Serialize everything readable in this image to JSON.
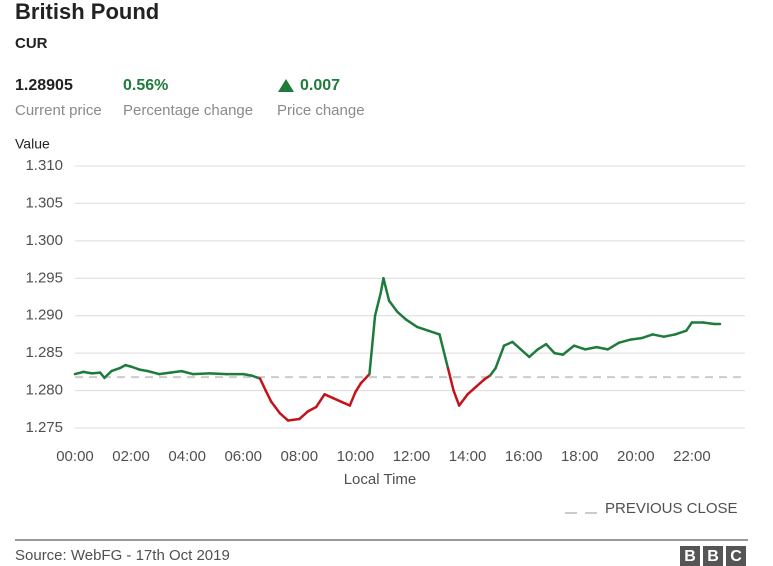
{
  "chart_data": {
    "type": "line",
    "title": "British Pound",
    "subtitle": "CUR",
    "stats": [
      {
        "value": "1.28905",
        "label": "Current price"
      },
      {
        "value": "0.56%",
        "label": "Percentage change"
      },
      {
        "value": "0.007",
        "label": "Price change"
      }
    ],
    "y_label": "Value",
    "x_label": "Local Time",
    "ylim": [
      1.275,
      1.31
    ],
    "yticks": [
      {
        "value": 1.275,
        "label": "1.275"
      },
      {
        "value": 1.28,
        "label": "1.280"
      },
      1.285,
      {
        "value": 1.29,
        "label": "1.290"
      },
      1.295,
      {
        "value": 1.3,
        "label": "1.300"
      },
      1.305,
      {
        "value": 1.31,
        "label": "1.310"
      }
    ],
    "xlim": [
      0,
      24
    ],
    "xticks": [
      {
        "value": 0,
        "label": "00:00"
      },
      {
        "value": 2,
        "label": "02:00"
      },
      {
        "value": 4,
        "label": "04:00"
      },
      {
        "value": 6,
        "label": "06:00"
      },
      {
        "value": 8,
        "label": "08:00"
      },
      {
        "value": 10,
        "label": "10:00"
      },
      {
        "value": 12,
        "label": "12:00"
      },
      {
        "value": 14,
        "label": "14:00"
      },
      {
        "value": 16,
        "label": "16:00"
      },
      {
        "value": 18,
        "label": "18:00"
      },
      {
        "value": 20,
        "label": "20:00"
      },
      {
        "value": 22,
        "label": "22:00"
      }
    ],
    "grid": true,
    "up_color": "#1e7b3c",
    "down_color": "#c3141c",
    "previous_close": {
      "value": 1.2818,
      "label": "PREVIOUS CLOSE",
      "color": "#cccccc"
    },
    "x": [
      0,
      0.3,
      0.6,
      0.9,
      1.05,
      1.3,
      1.6,
      1.8,
      2.0,
      2.3,
      2.6,
      3.0,
      3.4,
      3.8,
      4.2,
      4.8,
      5.4,
      6.0,
      6.3,
      6.6,
      6.8,
      7.0,
      7.3,
      7.6,
      8.0,
      8.3,
      8.6,
      8.9,
      9.2,
      9.5,
      9.8,
      10.0,
      10.2,
      10.5,
      10.7,
      10.9,
      11.0,
      11.2,
      11.5,
      11.8,
      12.2,
      12.6,
      13.0,
      13.3,
      13.5,
      13.7,
      14.0,
      14.3,
      14.6,
      14.8,
      15.0,
      15.3,
      15.6,
      15.9,
      16.2,
      16.5,
      16.8,
      17.1,
      17.4,
      17.8,
      18.2,
      18.6,
      19.0,
      19.4,
      19.8,
      20.2,
      20.6,
      21.0,
      21.4,
      21.8,
      22.0,
      22.4,
      22.8,
      23.0
    ],
    "values": [
      1.2822,
      1.2825,
      1.2823,
      1.2824,
      1.2817,
      1.2826,
      1.283,
      1.2834,
      1.2832,
      1.2828,
      1.2826,
      1.2822,
      1.2824,
      1.2826,
      1.2822,
      1.2823,
      1.2822,
      1.2822,
      1.282,
      1.2816,
      1.28,
      1.2785,
      1.277,
      1.276,
      1.2762,
      1.2772,
      1.2778,
      1.2795,
      1.279,
      1.2785,
      1.278,
      1.2798,
      1.281,
      1.2822,
      1.29,
      1.293,
      1.295,
      1.292,
      1.2905,
      1.2895,
      1.2885,
      1.288,
      1.2875,
      1.283,
      1.28,
      1.278,
      1.2795,
      1.2805,
      1.2815,
      1.282,
      1.283,
      1.286,
      1.2865,
      1.2855,
      1.2845,
      1.2855,
      1.2862,
      1.285,
      1.2848,
      1.286,
      1.2855,
      1.2858,
      1.2855,
      1.2864,
      1.2868,
      1.287,
      1.2875,
      1.2872,
      1.2875,
      1.288,
      1.2891,
      1.2891,
      1.2889,
      1.2889
    ],
    "source": "Source: WebFG - 17th Oct 2019",
    "logo": [
      "B",
      "B",
      "C"
    ]
  }
}
